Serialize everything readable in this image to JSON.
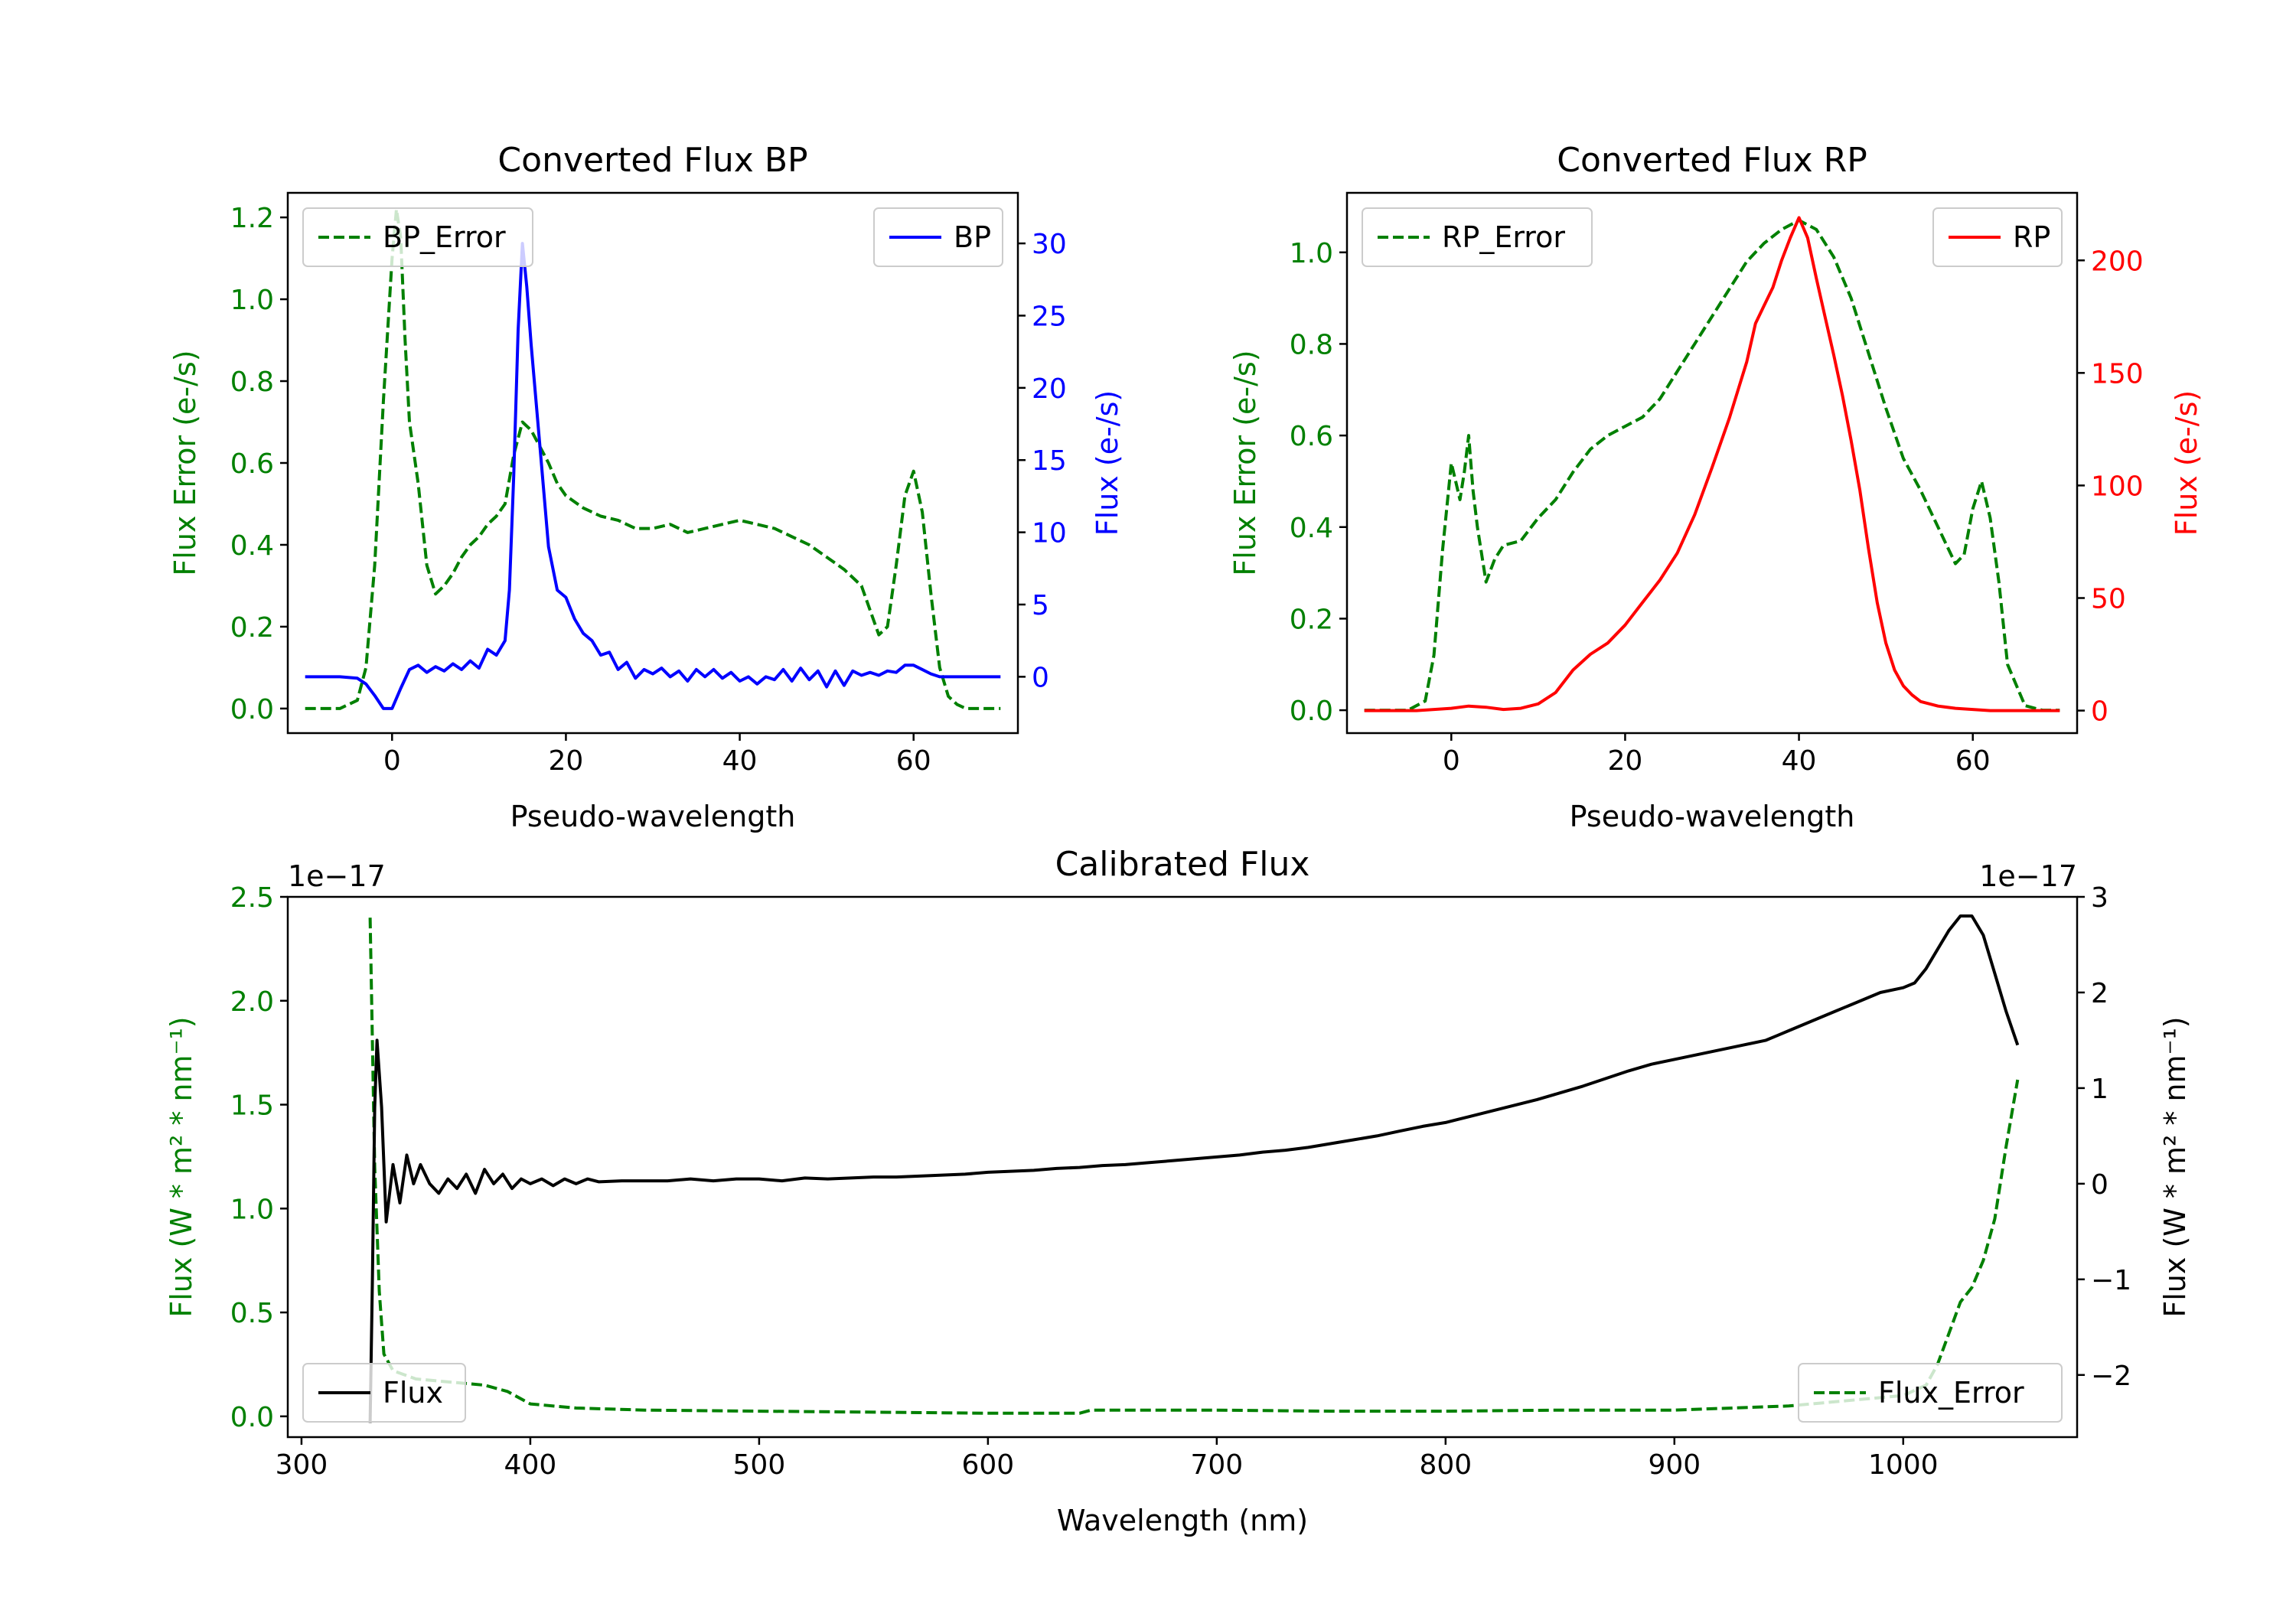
{
  "chart_data": [
    {
      "type": "line",
      "title": "Converted Flux BP",
      "xlabel": "Pseudo-wavelength",
      "xlim": [
        -12,
        72
      ],
      "xticks": [
        0,
        20,
        40,
        60
      ],
      "left_axis": {
        "label": "Flux Error (e-/s)",
        "color": "#008000",
        "ylim": [
          -0.06,
          1.26
        ],
        "ticks": [
          "0.0",
          "0.2",
          "0.4",
          "0.6",
          "0.8",
          "1.0",
          "1.2"
        ]
      },
      "right_axis": {
        "label": "Flux (e-/s)",
        "color": "#0000ff",
        "ylim": [
          -3.9,
          33.5
        ],
        "ticks": [
          "0",
          "5",
          "10",
          "15",
          "20",
          "25",
          "30"
        ]
      },
      "series": [
        {
          "name": "BP_Error",
          "axis": "left",
          "style": "dashed",
          "color": "#008000",
          "x": [
            -10,
            -6,
            -4,
            -3,
            -2,
            -1,
            0,
            0.5,
            1,
            1.5,
            2,
            3,
            4,
            5,
            6,
            7,
            8,
            9,
            10,
            11,
            12,
            13,
            14,
            15,
            16,
            17,
            18,
            19,
            20,
            22,
            24,
            26,
            28,
            30,
            32,
            34,
            36,
            38,
            40,
            42,
            44,
            46,
            48,
            50,
            52,
            54,
            55,
            56,
            57,
            58,
            59,
            60,
            61,
            62,
            63,
            64,
            65,
            66,
            68,
            70
          ],
          "y": [
            0.0,
            0.0,
            0.02,
            0.1,
            0.35,
            0.75,
            1.1,
            1.22,
            1.15,
            0.9,
            0.7,
            0.55,
            0.35,
            0.28,
            0.3,
            0.33,
            0.37,
            0.4,
            0.42,
            0.45,
            0.47,
            0.5,
            0.62,
            0.7,
            0.68,
            0.64,
            0.6,
            0.55,
            0.52,
            0.49,
            0.47,
            0.46,
            0.44,
            0.44,
            0.45,
            0.43,
            0.44,
            0.45,
            0.46,
            0.45,
            0.44,
            0.42,
            0.4,
            0.37,
            0.34,
            0.3,
            0.24,
            0.18,
            0.2,
            0.35,
            0.52,
            0.58,
            0.48,
            0.28,
            0.1,
            0.03,
            0.01,
            0.0,
            0.0,
            0.0
          ]
        },
        {
          "name": "BP",
          "axis": "right",
          "style": "solid",
          "color": "#0000ff",
          "x": [
            -10,
            -6,
            -4,
            -3,
            -2,
            -1,
            0,
            1,
            2,
            3,
            4,
            5,
            6,
            7,
            8,
            9,
            10,
            11,
            12,
            13,
            13.5,
            14,
            14.5,
            15,
            15.5,
            16,
            17,
            18,
            19,
            20,
            21,
            22,
            23,
            24,
            25,
            26,
            27,
            28,
            29,
            30,
            31,
            32,
            33,
            34,
            35,
            36,
            37,
            38,
            39,
            40,
            41,
            42,
            43,
            44,
            45,
            46,
            47,
            48,
            49,
            50,
            51,
            52,
            53,
            54,
            55,
            56,
            57,
            58,
            59,
            60,
            61,
            62,
            63,
            64,
            66,
            68,
            70
          ],
          "y": [
            0,
            0,
            -0.1,
            -0.5,
            -1.3,
            -2.2,
            -2.2,
            -0.8,
            0.5,
            0.8,
            0.3,
            0.7,
            0.4,
            0.9,
            0.5,
            1.1,
            0.6,
            1.9,
            1.5,
            2.5,
            6,
            14,
            24,
            30,
            27,
            23,
            16,
            9,
            6,
            5.5,
            4,
            3,
            2.5,
            1.5,
            1.7,
            0.5,
            1,
            -0.1,
            0.5,
            0.2,
            0.6,
            0,
            0.4,
            -0.3,
            0.5,
            0,
            0.5,
            -0.1,
            0.3,
            -0.3,
            0,
            -0.5,
            0,
            -0.2,
            0.5,
            -0.3,
            0.6,
            -0.2,
            0.4,
            -0.7,
            0.4,
            -0.6,
            0.4,
            0.1,
            0.3,
            0.1,
            0.4,
            0.3,
            0.8,
            0.8,
            0.5,
            0.2,
            0,
            0,
            0,
            0,
            0
          ]
        }
      ],
      "legends": [
        {
          "label": "BP_Error",
          "position": "upper left"
        },
        {
          "label": "BP",
          "position": "upper right"
        }
      ]
    },
    {
      "type": "line",
      "title": "Converted Flux RP",
      "xlabel": "Pseudo-wavelength",
      "xlim": [
        -12,
        72
      ],
      "xticks": [
        0,
        20,
        40,
        60
      ],
      "left_axis": {
        "label": "Flux Error (e-/s)",
        "color": "#008000",
        "ylim": [
          -0.05,
          1.13
        ],
        "ticks": [
          "0.0",
          "0.2",
          "0.4",
          "0.6",
          "0.8",
          "1.0"
        ]
      },
      "right_axis": {
        "label": "Flux (e-/s)",
        "color": "#ff0000",
        "ylim": [
          -10,
          230
        ],
        "ticks": [
          "0",
          "50",
          "100",
          "150",
          "200"
        ]
      },
      "series": [
        {
          "name": "RP_Error",
          "axis": "left",
          "style": "dashed",
          "color": "#008000",
          "x": [
            -10,
            -5,
            -3,
            -2,
            -1,
            0,
            0.5,
            1,
            1.5,
            2,
            2.5,
            3,
            4,
            5,
            6,
            8,
            10,
            12,
            14,
            16,
            18,
            20,
            22,
            24,
            26,
            28,
            30,
            32,
            34,
            36,
            38,
            40,
            42,
            44,
            46,
            48,
            50,
            52,
            54,
            55,
            56,
            57,
            58,
            59,
            60,
            61,
            62,
            63,
            64,
            66,
            68,
            70
          ],
          "y": [
            0.0,
            0.0,
            0.02,
            0.12,
            0.35,
            0.54,
            0.5,
            0.46,
            0.52,
            0.6,
            0.48,
            0.4,
            0.28,
            0.33,
            0.36,
            0.37,
            0.42,
            0.46,
            0.52,
            0.57,
            0.6,
            0.62,
            0.64,
            0.68,
            0.74,
            0.8,
            0.86,
            0.92,
            0.98,
            1.02,
            1.05,
            1.07,
            1.05,
            0.99,
            0.9,
            0.78,
            0.66,
            0.55,
            0.48,
            0.44,
            0.4,
            0.36,
            0.32,
            0.34,
            0.44,
            0.5,
            0.42,
            0.28,
            0.1,
            0.01,
            0.0,
            0.0
          ]
        },
        {
          "name": "RP",
          "axis": "right",
          "style": "solid",
          "color": "#ff0000",
          "x": [
            -10,
            -4,
            0,
            2,
            4,
            6,
            8,
            10,
            12,
            14,
            16,
            18,
            20,
            22,
            24,
            26,
            28,
            30,
            32,
            34,
            35,
            36,
            37,
            38,
            39,
            40,
            41,
            42,
            43,
            44,
            45,
            46,
            47,
            48,
            49,
            50,
            51,
            52,
            53,
            54,
            56,
            58,
            60,
            62,
            65,
            70
          ],
          "y": [
            0,
            0,
            1,
            2,
            1.5,
            0.5,
            1,
            3,
            8,
            18,
            25,
            30,
            38,
            48,
            58,
            70,
            87,
            108,
            130,
            155,
            172,
            180,
            188,
            200,
            210,
            219,
            210,
            192,
            175,
            158,
            140,
            120,
            98,
            72,
            48,
            30,
            18,
            11,
            7,
            4,
            2,
            1,
            0.5,
            0,
            0,
            0
          ]
        }
      ],
      "legends": [
        {
          "label": "RP_Error",
          "position": "upper left"
        },
        {
          "label": "RP",
          "position": "upper right"
        }
      ]
    },
    {
      "type": "line",
      "title": "Calibrated Flux",
      "xlabel": "Wavelength (nm)",
      "xlim": [
        294,
        1076
      ],
      "xticks": [
        300,
        400,
        500,
        600,
        700,
        800,
        900,
        1000
      ],
      "left_axis": {
        "label": "Flux (W * m² * nm⁻¹)",
        "color": "#008000",
        "ylim": [
          -0.1,
          2.5
        ],
        "ticks": [
          "0.0",
          "0.5",
          "1.0",
          "1.5",
          "2.0",
          "2.5"
        ],
        "offset_text": "1e−17"
      },
      "right_axis": {
        "label": "Flux (W * m² * nm⁻¹)",
        "color": "#000000",
        "ylim": [
          -2.65,
          3.0
        ],
        "ticks": [
          "−2",
          "−1",
          "0",
          "1",
          "2",
          "3"
        ],
        "offset_text": "1e−17"
      },
      "series": [
        {
          "name": "Flux_Error",
          "axis": "left",
          "style": "dashed",
          "color": "#008000",
          "x": [
            330,
            331,
            332,
            334,
            336,
            340,
            350,
            360,
            370,
            380,
            390,
            400,
            420,
            450,
            500,
            550,
            600,
            640,
            645,
            700,
            750,
            800,
            850,
            900,
            950,
            980,
            1000,
            1010,
            1015,
            1020,
            1025,
            1030,
            1035,
            1040,
            1045,
            1050
          ],
          "y": [
            2.4,
            1.8,
            1.2,
            0.6,
            0.3,
            0.22,
            0.18,
            0.17,
            0.16,
            0.15,
            0.12,
            0.06,
            0.04,
            0.03,
            0.025,
            0.02,
            0.015,
            0.015,
            0.03,
            0.03,
            0.025,
            0.025,
            0.03,
            0.03,
            0.05,
            0.08,
            0.1,
            0.15,
            0.25,
            0.4,
            0.55,
            0.62,
            0.75,
            0.95,
            1.3,
            1.62
          ]
        },
        {
          "name": "Flux",
          "axis": "right",
          "style": "solid",
          "color": "#000000",
          "x": [
            330,
            331,
            332,
            333,
            335,
            337,
            340,
            343,
            346,
            349,
            352,
            356,
            360,
            364,
            368,
            372,
            376,
            380,
            384,
            388,
            392,
            396,
            400,
            405,
            410,
            415,
            420,
            425,
            430,
            440,
            450,
            460,
            470,
            480,
            490,
            500,
            510,
            520,
            530,
            540,
            550,
            560,
            570,
            580,
            590,
            600,
            610,
            620,
            630,
            640,
            650,
            660,
            670,
            680,
            690,
            700,
            710,
            720,
            730,
            740,
            750,
            760,
            770,
            780,
            790,
            800,
            810,
            820,
            830,
            840,
            850,
            860,
            870,
            880,
            890,
            900,
            910,
            920,
            930,
            940,
            945,
            950,
            960,
            970,
            980,
            990,
            1000,
            1005,
            1010,
            1015,
            1020,
            1025,
            1030,
            1035,
            1040,
            1045,
            1050
          ],
          "y": [
            -2.5,
            -1.0,
            0.8,
            1.5,
            0.8,
            -0.4,
            0.2,
            -0.2,
            0.3,
            0.0,
            0.2,
            0.0,
            -0.1,
            0.05,
            -0.05,
            0.1,
            -0.1,
            0.15,
            0.0,
            0.1,
            -0.05,
            0.05,
            0.0,
            0.05,
            -0.02,
            0.05,
            0.0,
            0.05,
            0.02,
            0.03,
            0.03,
            0.03,
            0.05,
            0.03,
            0.05,
            0.05,
            0.03,
            0.06,
            0.05,
            0.06,
            0.07,
            0.07,
            0.08,
            0.09,
            0.1,
            0.12,
            0.13,
            0.14,
            0.16,
            0.17,
            0.19,
            0.2,
            0.22,
            0.24,
            0.26,
            0.28,
            0.3,
            0.33,
            0.35,
            0.38,
            0.42,
            0.46,
            0.5,
            0.55,
            0.6,
            0.64,
            0.7,
            0.76,
            0.82,
            0.88,
            0.95,
            1.02,
            1.1,
            1.18,
            1.25,
            1.3,
            1.35,
            1.4,
            1.45,
            1.5,
            1.55,
            1.6,
            1.7,
            1.8,
            1.9,
            2.0,
            2.05,
            2.1,
            2.25,
            2.45,
            2.65,
            2.8,
            2.8,
            2.6,
            2.2,
            1.8,
            1.45
          ]
        }
      ],
      "legends": [
        {
          "label": "Flux",
          "position": "lower left"
        },
        {
          "label": "Flux_Error",
          "position": "lower right"
        }
      ]
    }
  ]
}
